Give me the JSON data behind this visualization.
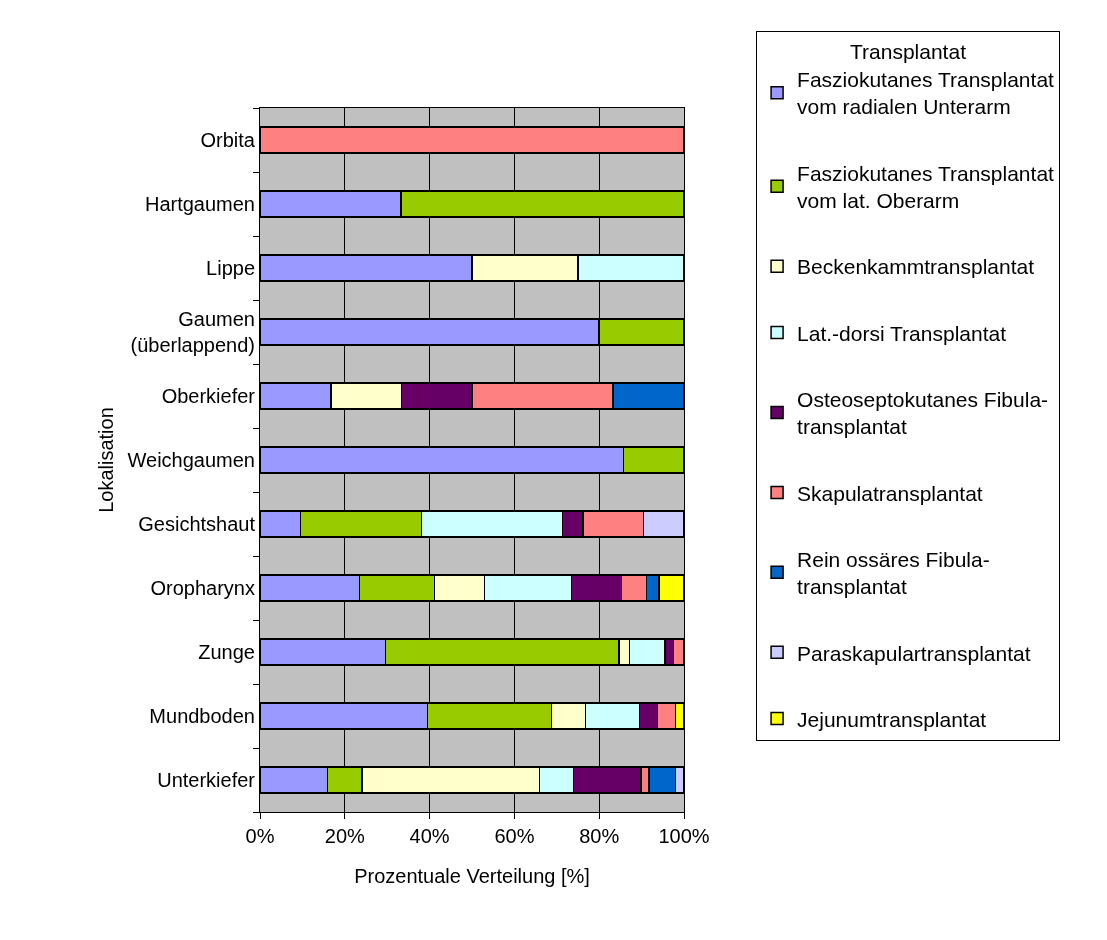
{
  "chart_data": {
    "type": "bar",
    "orientation": "horizontal",
    "stacked": true,
    "categories": [
      "Orbita",
      "Hartgaumen",
      "Lippe",
      "Gaumen (überlappend)",
      "Oberkiefer",
      "Weichgaumen",
      "Gesichtshaut",
      "Oropharynx",
      "Zunge",
      "Mundboden",
      "Unterkiefer"
    ],
    "series": [
      {
        "name": "Fasziokutanes Transplantat vom radialen Unterarm",
        "color": "#9999ff",
        "values": [
          null,
          33.3,
          50,
          80,
          16.7,
          85.7,
          9.5,
          23.5,
          29.6,
          39.5,
          15.9
        ]
      },
      {
        "name": "Fasziokutanes Transplantat vom lat. Oberarm",
        "color": "#99cc00",
        "values": [
          null,
          66.7,
          null,
          20,
          null,
          14.3,
          28.6,
          17.6,
          55.1,
          29.3,
          8.1
        ]
      },
      {
        "name": "Beckenkammtransplantat",
        "color": "#ffffcc",
        "values": [
          null,
          null,
          25,
          null,
          16.7,
          null,
          null,
          11.8,
          2.4,
          8.0,
          41.9
        ]
      },
      {
        "name": "Lat.-dorsi Transplantat",
        "color": "#ccffff",
        "values": [
          null,
          null,
          25,
          null,
          null,
          null,
          33.3,
          20.6,
          8.4,
          12.7,
          8.0
        ]
      },
      {
        "name": "Osteoseptokutanes Fibula-transplantat",
        "color": "#660066",
        "values": [
          null,
          null,
          null,
          null,
          16.6,
          null,
          4.8,
          11.8,
          2.0,
          4.2,
          16.0
        ]
      },
      {
        "name": "Skapulatransplantat",
        "color": "#ff8080",
        "values": [
          100,
          null,
          null,
          null,
          33.3,
          null,
          14.3,
          5.9,
          2.5,
          4.3,
          1.9
        ]
      },
      {
        "name": "Rein ossäres Fibula-transplantat",
        "color": "#0066cc",
        "values": [
          null,
          null,
          null,
          null,
          16.7,
          null,
          null,
          2.9,
          null,
          null,
          6.2
        ]
      },
      {
        "name": "Paraskapulartransplantat",
        "color": "#ccccff",
        "values": [
          null,
          null,
          null,
          null,
          null,
          null,
          9.5,
          null,
          null,
          null,
          2.0
        ]
      },
      {
        "name": "Jejunumtransplantat",
        "color": "#ffff00",
        "values": [
          null,
          null,
          null,
          null,
          null,
          null,
          null,
          5.9,
          null,
          2.0,
          null
        ]
      }
    ],
    "xlim": [
      0,
      100
    ],
    "xticks": [
      {
        "value": 0,
        "label": "0%"
      },
      {
        "value": 20,
        "label": "20%"
      },
      {
        "value": 40,
        "label": "40%"
      },
      {
        "value": 60,
        "label": "60%"
      },
      {
        "value": 80,
        "label": "80%"
      },
      {
        "value": 100,
        "label": "100%"
      }
    ],
    "xlabel": "Prozentuale Verteilung [%]",
    "ylabel": "Lokalisation",
    "legend_title": "Transplantat",
    "legend": "right",
    "grid": "x"
  }
}
